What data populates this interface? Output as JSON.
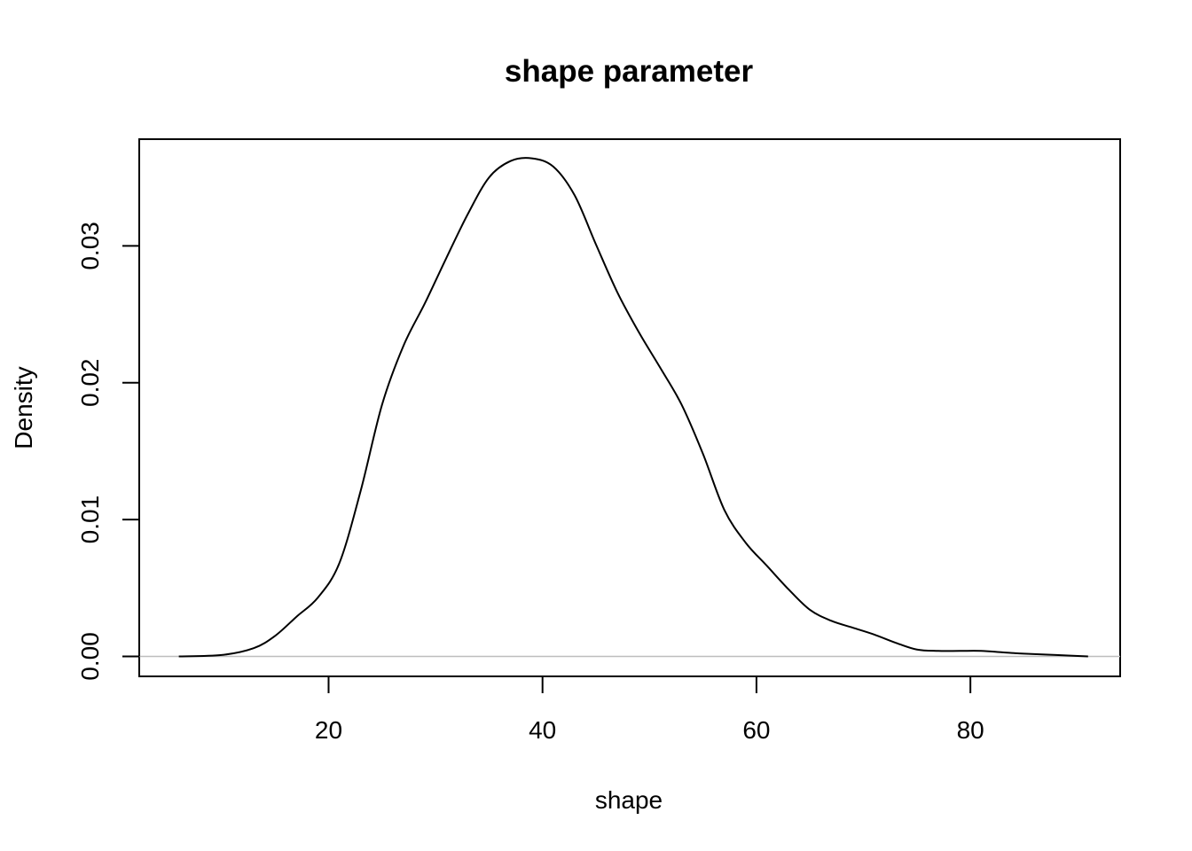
{
  "chart_data": {
    "type": "line",
    "title": "shape parameter",
    "xlabel": "shape",
    "ylabel": "Density",
    "xlim": [
      2.3,
      94.0
    ],
    "ylim": [
      -0.00146,
      0.0378
    ],
    "x_ticks": [
      20,
      40,
      60,
      80
    ],
    "x_tick_labels": [
      "20",
      "40",
      "60",
      "80"
    ],
    "y_ticks": [
      0.0,
      0.01,
      0.02,
      0.03
    ],
    "y_tick_labels": [
      "0.00",
      "0.01",
      "0.02",
      "0.03"
    ],
    "zero_line_color": "#bebebe",
    "line_color": "#000000",
    "grid": false,
    "series": [
      {
        "x": [
          6,
          10,
          13,
          15,
          17,
          19,
          21,
          23,
          25,
          27,
          29,
          31,
          33,
          35,
          37,
          39,
          41,
          43,
          45,
          47,
          49,
          51,
          53,
          55,
          57,
          59,
          61,
          63,
          65,
          67,
          69,
          71,
          73,
          75,
          77,
          79,
          81,
          83,
          85,
          88,
          91
        ],
        "y": [
          0.0,
          0.0001,
          0.0006,
          0.0015,
          0.0029,
          0.0043,
          0.0068,
          0.0121,
          0.0184,
          0.0227,
          0.0258,
          0.0291,
          0.0323,
          0.035,
          0.0362,
          0.0364,
          0.0358,
          0.0337,
          0.0301,
          0.0266,
          0.0237,
          0.0211,
          0.0184,
          0.0148,
          0.0107,
          0.0083,
          0.0066,
          0.0049,
          0.0034,
          0.0026,
          0.0021,
          0.0016,
          0.001,
          0.0005,
          0.0004,
          0.0004,
          0.0004,
          0.0003,
          0.0002,
          0.0001,
          0.0
        ]
      }
    ]
  }
}
